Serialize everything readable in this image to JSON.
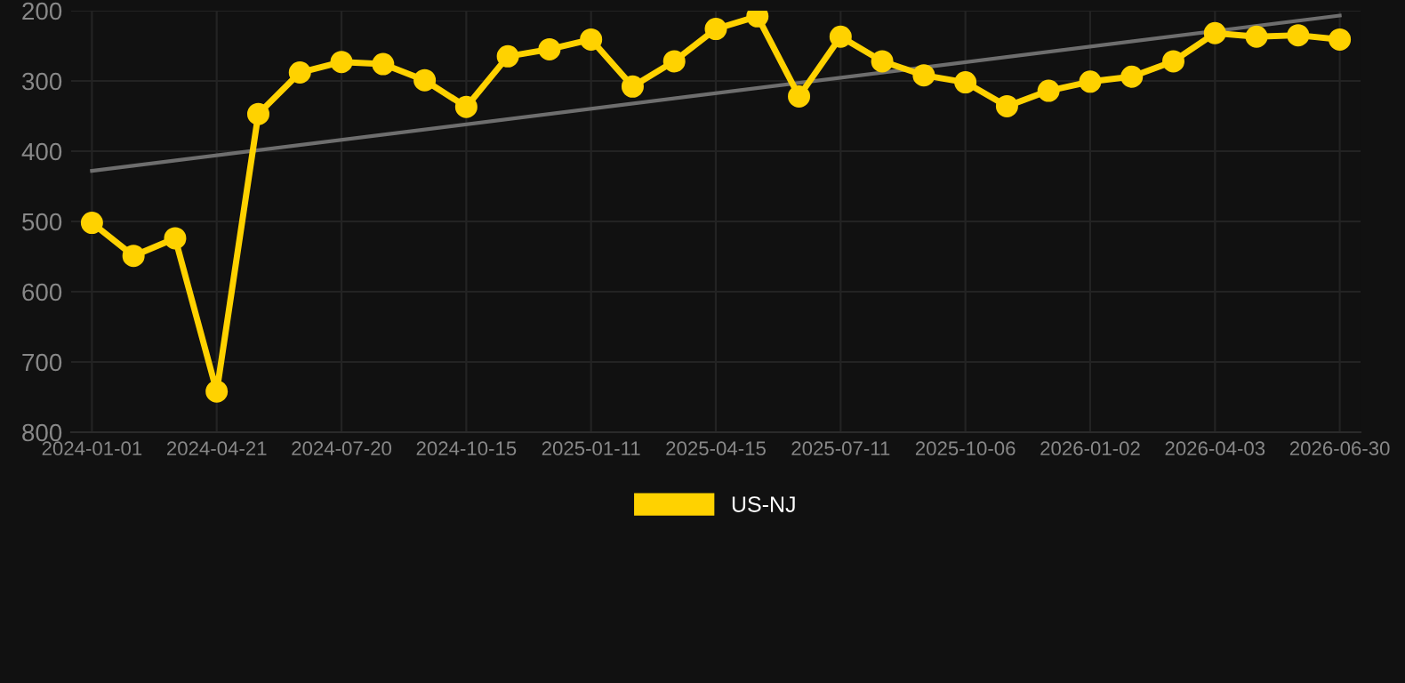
{
  "chart_data": {
    "type": "line",
    "categories": [
      "2024-01-01",
      null,
      null,
      "2024-04-21",
      null,
      null,
      "2024-07-20",
      null,
      null,
      "2024-10-15",
      null,
      null,
      "2025-01-11",
      null,
      null,
      "2025-04-15",
      null,
      null,
      "2025-07-11",
      null,
      null,
      "2025-10-06",
      null,
      null,
      "2026-01-02",
      null,
      null,
      "2026-04-03",
      null,
      null,
      "2026-06-30"
    ],
    "series": [
      {
        "name": "US-NJ",
        "color": "#ffd200",
        "marker": "circle",
        "values": [
          502,
          549,
          524,
          742,
          347,
          288,
          273,
          276,
          299,
          337,
          265,
          255,
          241,
          308,
          272,
          226,
          208,
          322,
          237,
          272,
          292,
          302,
          336,
          314,
          301,
          294,
          272,
          232,
          237,
          235,
          241
        ]
      },
      {
        "type": "line",
        "color": "#6e6e6e",
        "marker": "none",
        "values": [
          428,
          null,
          null,
          null,
          null,
          null,
          null,
          null,
          null,
          null,
          null,
          null,
          null,
          null,
          null,
          null,
          null,
          null,
          null,
          null,
          null,
          null,
          null,
          null,
          null,
          null,
          null,
          null,
          null,
          null,
          207
        ]
      }
    ],
    "ylim": [
      800,
      200
    ],
    "yticks": [
      200,
      300,
      400,
      500,
      600,
      700,
      800
    ],
    "grid": true,
    "legend": "bottom"
  }
}
